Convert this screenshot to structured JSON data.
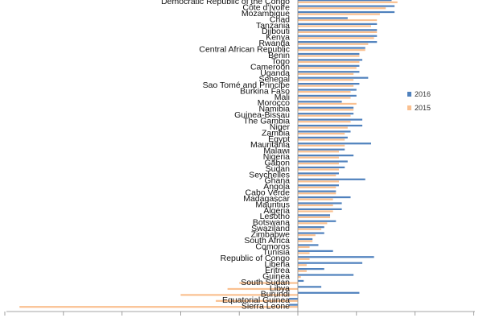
{
  "chart_data": {
    "type": "bar",
    "orientation": "horizontal",
    "title": "",
    "xlabel": "",
    "ylabel": "",
    "xlim": [
      -100,
      80
    ],
    "gridlines": false,
    "legend_position": "right",
    "categories": [
      "Democratic Republic of the Congo",
      "Côte d'Ivoire",
      "Mozambique",
      "Chad",
      "Tanzania",
      "Djibouti",
      "Kenya",
      "Rwanda",
      "Central African Republic",
      "Benin",
      "Togo",
      "Cameroon",
      "Uganda",
      "Senegal",
      "Sao Tomé and Principe",
      "Burkina Faso",
      "Mali",
      "Morocco",
      "Namibia",
      "Guinea-Bissau",
      "The Gambia",
      "Niger",
      "Zambia",
      "Egypt",
      "Mauritania",
      "Malawi",
      "Nigeria",
      "Gabon",
      "Sudan",
      "Seychelles",
      "Ghana",
      "Angola",
      "Cabo Verde",
      "Madagascar",
      "Mauritius",
      "Algeria",
      "Lesotho",
      "Botswana",
      "Swaziland",
      "Zimbabwe",
      "South Africa",
      "Comoros",
      "Tunisia",
      "Republic of Congo",
      "Liberia",
      "Eritrea",
      "Guinea",
      "South Sudan",
      "Libya",
      "Burundi",
      "Equatorial Guinea",
      "Sierra Leone"
    ],
    "series": [
      {
        "name": "2016",
        "color": "#4f81bd",
        "values": [
          32,
          33,
          33,
          17,
          27,
          27,
          27,
          27,
          23,
          21,
          22,
          21,
          21,
          24,
          21,
          20,
          20,
          15,
          19,
          19,
          22,
          22,
          18,
          17,
          25,
          16,
          19,
          17,
          16,
          14,
          23,
          14,
          13,
          18,
          15,
          15,
          11,
          13,
          9,
          9,
          5,
          7,
          12,
          26,
          22,
          9,
          19,
          2,
          8,
          21,
          -3,
          -3
        ]
      },
      {
        "name": "2015",
        "color": "#fac090",
        "values": [
          34,
          30,
          28,
          27,
          25,
          27,
          26,
          24,
          23,
          21,
          21,
          20,
          19,
          19,
          19,
          18,
          18,
          20,
          19,
          18,
          18,
          17,
          16,
          16,
          16,
          14,
          14,
          14,
          14,
          13,
          14,
          13,
          13,
          12,
          12,
          12,
          11,
          10,
          8,
          6,
          5,
          4,
          4,
          4,
          3,
          3,
          1,
          -20,
          -24,
          -40,
          -28,
          -95
        ]
      }
    ],
    "legend": [
      "2016",
      "2015"
    ]
  }
}
